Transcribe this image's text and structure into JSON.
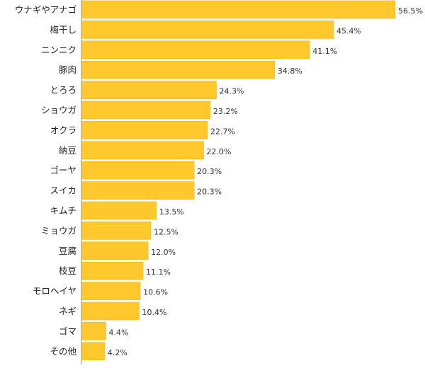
{
  "chart_data": {
    "type": "bar",
    "orientation": "horizontal",
    "categories": [
      "ウナギやアナゴ",
      "梅干し",
      "ニンニク",
      "豚肉",
      "とろろ",
      "ショウガ",
      "オクラ",
      "納豆",
      "ゴーヤ",
      "スイカ",
      "キムチ",
      "ミョウガ",
      "豆腐",
      "枝豆",
      "モロヘイヤ",
      "ネギ",
      "ゴマ",
      "その他"
    ],
    "values": [
      56.5,
      45.4,
      41.1,
      34.8,
      24.3,
      23.2,
      22.7,
      22.0,
      20.3,
      20.3,
      13.5,
      12.5,
      12.0,
      11.1,
      10.6,
      10.4,
      4.4,
      4.2
    ],
    "value_labels": [
      "56.5%",
      "45.4%",
      "41.1%",
      "34.8%",
      "24.3%",
      "23.2%",
      "22.7%",
      "22.0%",
      "20.3%",
      "20.3%",
      "13.5%",
      "12.5%",
      "12.0%",
      "11.1%",
      "10.6%",
      "10.4%",
      "4.4%",
      "4.2%"
    ],
    "xlim": [
      0,
      56.5
    ],
    "grid": false,
    "colors": {
      "bar": "#FFC82C",
      "bar_edge": "#F2B400",
      "axis": "#999999"
    }
  }
}
